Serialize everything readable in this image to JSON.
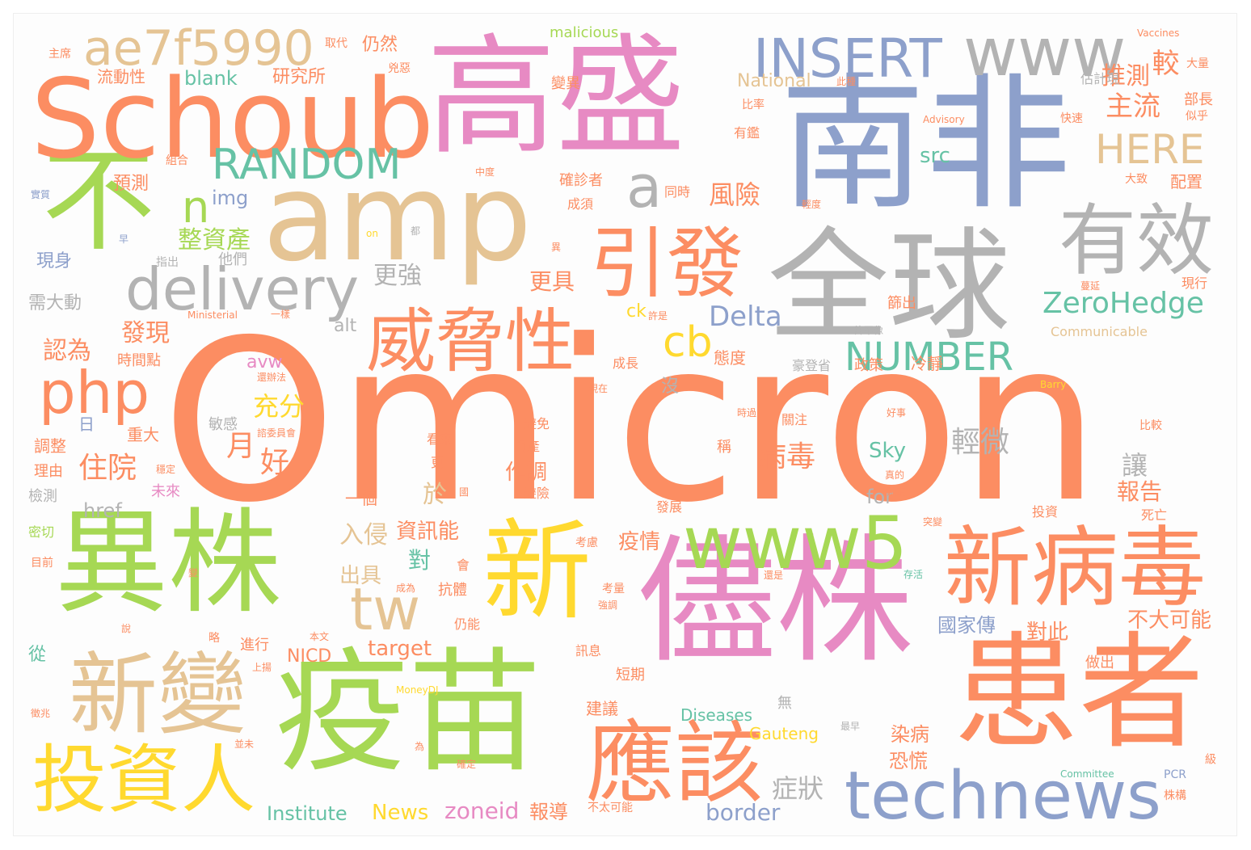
{
  "words": [
    {
      "text": "Omicron",
      "color": "#fc8d62"
    },
    {
      "text": "南非",
      "color": "#8da0cb"
    },
    {
      "text": "高盛",
      "color": "#e78ac3"
    },
    {
      "text": "全球",
      "color": "#b3b3b3"
    },
    {
      "text": "amp",
      "color": "#e5c494"
    },
    {
      "text": "不",
      "color": "#a6d854"
    },
    {
      "text": "Schoub",
      "color": "#fc8d62"
    },
    {
      "text": "異株",
      "color": "#a6d854"
    },
    {
      "text": "新",
      "color": "#ffd92f"
    },
    {
      "text": "疫苗",
      "color": "#a6d854"
    },
    {
      "text": "儘株",
      "color": "#e78ac3"
    },
    {
      "text": "患者",
      "color": "#fc8d62"
    },
    {
      "text": "新變",
      "color": "#e5c494"
    },
    {
      "text": "投資人",
      "color": "#ffd92f"
    },
    {
      "text": "應該",
      "color": "#fc8d62"
    },
    {
      "text": "technews",
      "color": "#8da0cb"
    },
    {
      "text": "新病毒",
      "color": "#fc8d62"
    },
    {
      "text": "www5",
      "color": "#a6d854"
    },
    {
      "text": "威脅性",
      "color": "#fc8d62"
    },
    {
      "text": "引發",
      "color": "#fc8d62"
    },
    {
      "text": "有效",
      "color": "#b3b3b3"
    },
    {
      "text": "www",
      "color": "#b3b3b3"
    },
    {
      "text": "INSERT",
      "color": "#8da0cb"
    },
    {
      "text": "ae7f5990",
      "color": "#e5c494"
    },
    {
      "text": "RANDOM",
      "color": "#66c2a5"
    },
    {
      "text": "delivery",
      "color": "#b3b3b3"
    },
    {
      "text": "php",
      "color": "#fc8d62"
    },
    {
      "text": "tw",
      "color": "#e5c494"
    },
    {
      "text": "cb",
      "color": "#ffd92f"
    },
    {
      "text": "NUMBER",
      "color": "#66c2a5"
    },
    {
      "text": "ZeroHedge",
      "color": "#66c2a5"
    },
    {
      "text": "HERE",
      "color": "#e5c494"
    },
    {
      "text": "Delta",
      "color": "#8da0cb"
    },
    {
      "text": "a",
      "color": "#b3b3b3"
    },
    {
      "text": "n",
      "color": "#a6d854"
    },
    {
      "text": "主流",
      "color": "#fc8d62"
    },
    {
      "text": "較",
      "color": "#fc8d62"
    },
    {
      "text": "推測",
      "color": "#fc8d62"
    },
    {
      "text": "風險",
      "color": "#fc8d62"
    },
    {
      "text": "更強",
      "color": "#b3b3b3"
    },
    {
      "text": "更具",
      "color": "#fc8d62"
    },
    {
      "text": "整資產",
      "color": "#a6d854"
    },
    {
      "text": "發現",
      "color": "#fc8d62"
    },
    {
      "text": "認為",
      "color": "#fc8d62"
    },
    {
      "text": "充分",
      "color": "#ffd92f"
    },
    {
      "text": "住院",
      "color": "#fc8d62"
    },
    {
      "text": "病毒",
      "color": "#fc8d62"
    },
    {
      "text": "輕微",
      "color": "#b3b3b3"
    },
    {
      "text": "月",
      "color": "#fc8d62"
    },
    {
      "text": "好",
      "color": "#fc8d62"
    },
    {
      "text": "讓",
      "color": "#b3b3b3"
    },
    {
      "text": "報告",
      "color": "#fc8d62"
    },
    {
      "text": "症狀",
      "color": "#b3b3b3"
    },
    {
      "text": "恐慌",
      "color": "#fc8d62"
    },
    {
      "text": "染病",
      "color": "#fc8d62"
    },
    {
      "text": "報導",
      "color": "#fc8d62"
    },
    {
      "text": "入侵",
      "color": "#e5c494"
    },
    {
      "text": "資訊能",
      "color": "#fc8d62"
    },
    {
      "text": "對",
      "color": "#66c2a5"
    },
    {
      "text": "於",
      "color": "#e5c494"
    },
    {
      "text": "出具",
      "color": "#e5c494"
    },
    {
      "text": "疫情",
      "color": "#fc8d62"
    },
    {
      "text": "作調",
      "color": "#fc8d62"
    },
    {
      "text": "國家傳",
      "color": "#8da0cb"
    },
    {
      "text": "不大可能",
      "color": "#fc8d62"
    },
    {
      "text": "對此",
      "color": "#fc8d62"
    },
    {
      "text": "target",
      "color": "#fc8d62"
    },
    {
      "text": "border",
      "color": "#8da0cb"
    },
    {
      "text": "zoneid",
      "color": "#e78ac3"
    },
    {
      "text": "News",
      "color": "#ffd92f"
    },
    {
      "text": "Institute",
      "color": "#66c2a5"
    },
    {
      "text": "NICD",
      "color": "#fc8d62"
    },
    {
      "text": "Diseases",
      "color": "#66c2a5"
    },
    {
      "text": "Gauteng",
      "color": "#ffd92f"
    },
    {
      "text": "Sky",
      "color": "#66c2a5"
    },
    {
      "text": "src",
      "color": "#66c2a5"
    },
    {
      "text": "img",
      "color": "#8da0cb"
    },
    {
      "text": "blank",
      "color": "#66c2a5"
    },
    {
      "text": "href",
      "color": "#b3b3b3"
    },
    {
      "text": "alt",
      "color": "#b3b3b3"
    },
    {
      "text": "ck",
      "color": "#ffd92f"
    },
    {
      "text": "avw",
      "color": "#e78ac3"
    },
    {
      "text": "for",
      "color": "#b3b3b3"
    },
    {
      "text": "National",
      "color": "#e5c494"
    },
    {
      "text": "malicious",
      "color": "#a6d854"
    },
    {
      "text": "Communicable",
      "color": "#e5c494"
    },
    {
      "text": "研究所",
      "color": "#fc8d62"
    },
    {
      "text": "仍然",
      "color": "#fc8d62"
    },
    {
      "text": "流動性",
      "color": "#fc8d62"
    },
    {
      "text": "預測",
      "color": "#fc8d62"
    },
    {
      "text": "現身",
      "color": "#8da0cb"
    },
    {
      "text": "需大動",
      "color": "#b3b3b3"
    },
    {
      "text": "時間點",
      "color": "#fc8d62"
    },
    {
      "text": "重大",
      "color": "#fc8d62"
    },
    {
      "text": "調整",
      "color": "#fc8d62"
    },
    {
      "text": "理由",
      "color": "#fc8d62"
    },
    {
      "text": "檢測",
      "color": "#b3b3b3"
    },
    {
      "text": "密切",
      "color": "#a6d854"
    },
    {
      "text": "從",
      "color": "#66c2a5"
    },
    {
      "text": "日",
      "color": "#8da0cb"
    },
    {
      "text": "他們",
      "color": "#b3b3b3"
    },
    {
      "text": "敏感",
      "color": "#b3b3b3"
    },
    {
      "text": "未來",
      "color": "#e78ac3"
    },
    {
      "text": "沒",
      "color": "#b3b3b3"
    },
    {
      "text": "態度",
      "color": "#fc8d62"
    },
    {
      "text": "冷靜",
      "color": "#fc8d62"
    },
    {
      "text": "政策",
      "color": "#fc8d62"
    },
    {
      "text": "豪登省",
      "color": "#b3b3b3"
    },
    {
      "text": "稱",
      "color": "#fc8d62"
    },
    {
      "text": "關注",
      "color": "#fc8d62"
    },
    {
      "text": "一個",
      "color": "#fc8d62"
    },
    {
      "text": "抗體",
      "color": "#fc8d62"
    },
    {
      "text": "仍能",
      "color": "#fc8d62"
    },
    {
      "text": "進行",
      "color": "#fc8d62"
    },
    {
      "text": "訊息",
      "color": "#fc8d62"
    },
    {
      "text": "短期",
      "color": "#fc8d62"
    },
    {
      "text": "建議",
      "color": "#fc8d62"
    },
    {
      "text": "無",
      "color": "#b3b3b3"
    },
    {
      "text": "做出",
      "color": "#fc8d62"
    },
    {
      "text": "投資",
      "color": "#fc8d62"
    },
    {
      "text": "死亡",
      "color": "#fc8d62"
    },
    {
      "text": "發展",
      "color": "#fc8d62"
    },
    {
      "text": "成長",
      "color": "#fc8d62"
    },
    {
      "text": "同時",
      "color": "#fc8d62"
    },
    {
      "text": "成須",
      "color": "#fc8d62"
    },
    {
      "text": "確診者",
      "color": "#fc8d62"
    },
    {
      "text": "配置",
      "color": "#fc8d62"
    },
    {
      "text": "部長",
      "color": "#fc8d62"
    },
    {
      "text": "估計現",
      "color": "#b3b3b3"
    },
    {
      "text": "變異",
      "color": "#fc8d62"
    },
    {
      "text": "主席",
      "color": "#fc8d62"
    },
    {
      "text": "取代",
      "color": "#fc8d62"
    },
    {
      "text": "兇惡",
      "color": "#fc8d62"
    },
    {
      "text": "組合",
      "color": "#fc8d62"
    },
    {
      "text": "實質",
      "color": "#8da0cb"
    },
    {
      "text": "指出",
      "color": "#b3b3b3"
    },
    {
      "text": "篩出",
      "color": "#fc8d62"
    },
    {
      "text": "現行",
      "color": "#fc8d62"
    },
    {
      "text": "大量",
      "color": "#fc8d62"
    },
    {
      "text": "似乎",
      "color": "#fc8d62"
    },
    {
      "text": "快速",
      "color": "#fc8d62"
    },
    {
      "text": "大致",
      "color": "#fc8d62"
    },
    {
      "text": "比率",
      "color": "#fc8d62"
    },
    {
      "text": "有鑑",
      "color": "#fc8d62"
    },
    {
      "text": "中度",
      "color": "#fc8d62"
    },
    {
      "text": "輕度",
      "color": "#fc8d62"
    },
    {
      "text": "此種",
      "color": "#fc8d62"
    },
    {
      "text": "Advisory",
      "color": "#fc8d62"
    },
    {
      "text": "Vaccines",
      "color": "#fc8d62"
    },
    {
      "text": "Ministerial",
      "color": "#fc8d62"
    },
    {
      "text": "on",
      "color": "#ffd92f"
    },
    {
      "text": "都",
      "color": "#b3b3b3"
    },
    {
      "text": "早",
      "color": "#8da0cb"
    },
    {
      "text": "許是",
      "color": "#fc8d62"
    },
    {
      "text": "許不像",
      "color": "#b3b3b3"
    },
    {
      "text": "一樣",
      "color": "#fc8d62"
    },
    {
      "text": "蔓延",
      "color": "#fc8d62"
    },
    {
      "text": "現在",
      "color": "#fc8d62"
    },
    {
      "text": "時過",
      "color": "#fc8d62"
    },
    {
      "text": "好事",
      "color": "#fc8d62"
    },
    {
      "text": "Barry",
      "color": "#ffd92f"
    },
    {
      "text": "比較",
      "color": "#fc8d62"
    },
    {
      "text": "避免",
      "color": "#fc8d62"
    },
    {
      "text": "資產",
      "color": "#fc8d62"
    },
    {
      "text": "看來",
      "color": "#fc8d62"
    },
    {
      "text": "更",
      "color": "#fc8d62"
    },
    {
      "text": "避險",
      "color": "#fc8d62"
    },
    {
      "text": "真的",
      "color": "#fc8d62"
    },
    {
      "text": "確定",
      "color": "#fc8d62"
    },
    {
      "text": "突變",
      "color": "#fc8d62"
    },
    {
      "text": "考慮",
      "color": "#fc8d62"
    },
    {
      "text": "考量",
      "color": "#fc8d62"
    },
    {
      "text": "強調",
      "color": "#fc8d62"
    },
    {
      "text": "存活",
      "color": "#66c2a5"
    },
    {
      "text": "還是",
      "color": "#fc8d62"
    },
    {
      "text": "成為",
      "color": "#fc8d62"
    },
    {
      "text": "本文",
      "color": "#fc8d62"
    },
    {
      "text": "上揚",
      "color": "#fc8d62"
    },
    {
      "text": "MoneyDJ",
      "color": "#ffd92f"
    },
    {
      "text": "最早",
      "color": "#b3b3b3"
    },
    {
      "text": "Committee",
      "color": "#66c2a5"
    },
    {
      "text": "PCR",
      "color": "#8da0cb"
    },
    {
      "text": "株構",
      "color": "#fc8d62"
    },
    {
      "text": "不太可能",
      "color": "#fc8d62"
    },
    {
      "text": "級",
      "color": "#fc8d62"
    },
    {
      "text": "目前",
      "color": "#fc8d62"
    },
    {
      "text": "徵兆",
      "color": "#fc8d62"
    },
    {
      "text": "並未",
      "color": "#fc8d62"
    },
    {
      "text": "為",
      "color": "#fc8d62"
    },
    {
      "text": "說",
      "color": "#fc8d62"
    },
    {
      "text": "會",
      "color": "#fc8d62"
    },
    {
      "text": "國",
      "color": "#fc8d62"
    },
    {
      "text": "諮委員會",
      "color": "#fc8d62"
    },
    {
      "text": "確定",
      "color": "#fc8d62"
    },
    {
      "text": "還辦法",
      "color": "#fc8d62"
    },
    {
      "text": "異",
      "color": "#fc8d62"
    },
    {
      "text": "變",
      "color": "#fc8d62"
    },
    {
      "text": "略",
      "color": "#fc8d62"
    },
    {
      "text": "穩定",
      "color": "#fc8d62"
    }
  ]
}
